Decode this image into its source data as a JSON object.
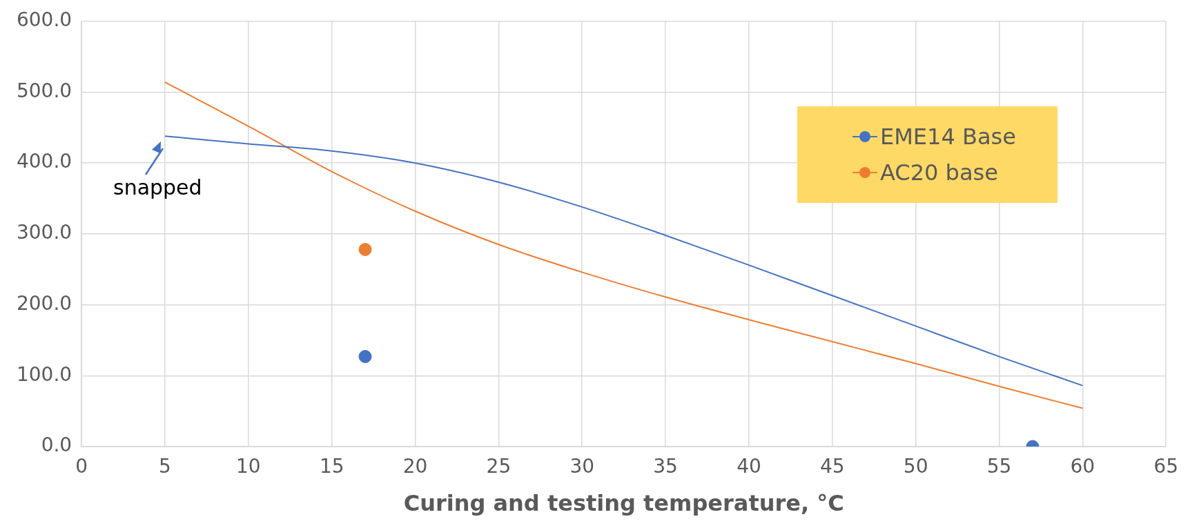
{
  "chart_data": {
    "type": "scatter",
    "xlabel": "Curing and testing temperature, °C",
    "xlim": [
      0,
      65
    ],
    "xticks": [
      0,
      5,
      10,
      15,
      20,
      25,
      30,
      35,
      40,
      45,
      50,
      55,
      60,
      65
    ],
    "ylim": [
      0,
      600
    ],
    "yticks": [
      {
        "value": 0,
        "label": "0.0"
      },
      {
        "value": 100,
        "label": "100.0"
      },
      {
        "value": 200,
        "label": "200.0"
      },
      {
        "value": 300,
        "label": "300.0"
      },
      {
        "value": 400,
        "label": "400.0"
      },
      {
        "value": 500,
        "label": "500.0"
      },
      {
        "value": 600,
        "label": "600.0"
      }
    ],
    "grid": true,
    "legend": "top right",
    "marker": "circle",
    "annotations": [
      {
        "text": "snapped",
        "x": 5,
        "y": 438
      }
    ],
    "series": [
      {
        "name": "EME14 Base",
        "color": "#4472c4",
        "x": [
          17,
          57
        ],
        "values": [
          127,
          0
        ]
      },
      {
        "name": "AC20 base",
        "color": "#ed7d31",
        "x": [
          17
        ],
        "values": [
          278
        ]
      },
      {
        "type": "line",
        "color": "#4472c4",
        "marker": "none",
        "x": [
          5,
          10,
          15,
          20,
          25,
          30,
          35,
          40,
          45,
          50,
          55,
          60
        ],
        "values": [
          438,
          427,
          417,
          400,
          373,
          338,
          298,
          256,
          213,
          170,
          127,
          86
        ]
      },
      {
        "type": "line",
        "color": "#ed7d31",
        "marker": "none",
        "x": [
          5,
          10,
          15,
          20,
          25,
          30,
          35,
          40,
          45,
          50,
          55,
          60
        ],
        "values": [
          514,
          452,
          388,
          332,
          285,
          246,
          211,
          179,
          148,
          117,
          85,
          54
        ]
      }
    ]
  }
}
